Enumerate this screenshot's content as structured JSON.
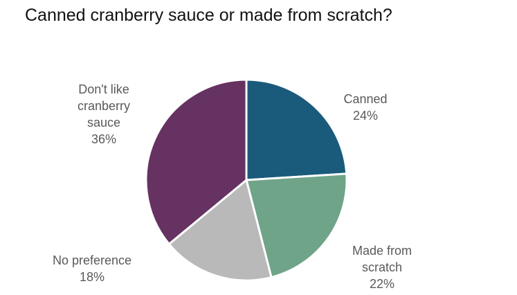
{
  "chart_data": {
    "type": "pie",
    "title": "Canned cranberry sauce or made from scratch?",
    "categories": [
      "Canned",
      "Made from scratch",
      "No preference",
      "Don't like cranberry sauce"
    ],
    "values": [
      24,
      22,
      18,
      36
    ],
    "value_labels": [
      "24%",
      "22%",
      "18%",
      "36%"
    ],
    "colors": [
      "#1a5b7c",
      "#6fa489",
      "#b9b9b9",
      "#653262"
    ]
  }
}
